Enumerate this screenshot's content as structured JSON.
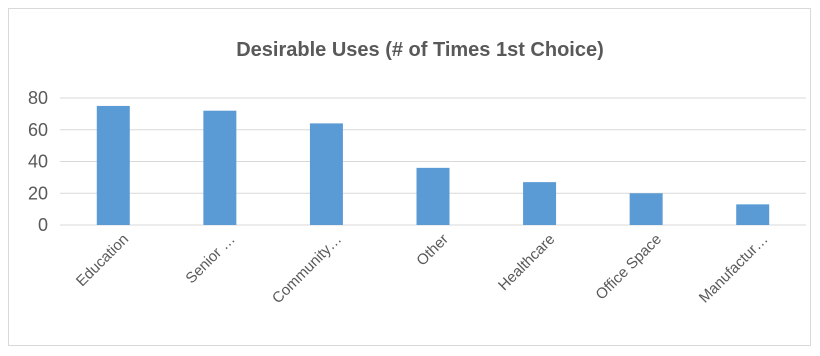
{
  "chart_data": {
    "type": "bar",
    "title": "Desirable Uses (# of Times 1st Choice)",
    "xlabel": "",
    "ylabel": "",
    "categories": [
      "Education",
      "Senior …",
      "Community…",
      "Other",
      "Healthcare",
      "Office Space",
      "Manufactur…"
    ],
    "values": [
      75,
      72,
      64,
      36,
      27,
      20,
      13
    ],
    "ylim": [
      0,
      80
    ],
    "yticks": [
      0,
      20,
      40,
      60,
      80
    ],
    "grid": true,
    "legend": "none",
    "colors": {
      "bar": "#5b9bd5",
      "grid": "#d9d9d9",
      "text": "#595959"
    }
  }
}
